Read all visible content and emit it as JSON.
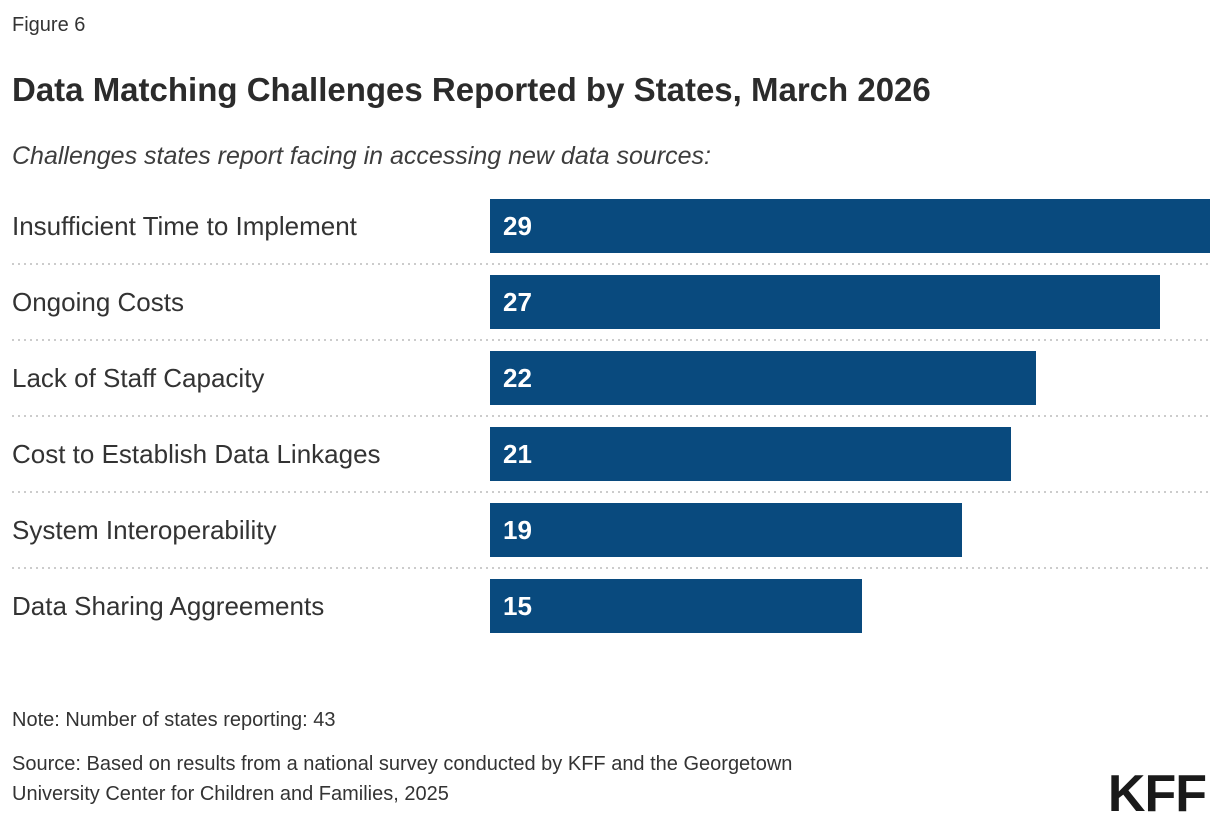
{
  "figure_label": "Figure 6",
  "title": "Data Matching Challenges Reported by States, March 2026",
  "subtitle": "Challenges states report facing in accessing new data sources:",
  "note": "Note: Number of states reporting: 43",
  "source": {
    "line1": "Source: Based on results from a national survey conducted by KFF and the Georgetown",
    "line2": "University Center for Children and Families, 2025"
  },
  "logo": "KFF",
  "colors": {
    "bar": "#094a7e",
    "separator": "#cccccc",
    "value_text": "#ffffff",
    "title_text": "#2b2b2b",
    "body_text": "#333333"
  },
  "chart_data": {
    "type": "bar",
    "orientation": "horizontal",
    "title": "Data Matching Challenges Reported by States, March 2026",
    "subtitle": "Challenges states report facing in accessing new data sources:",
    "categories": [
      "Insufficient Time to Implement",
      "Ongoing Costs",
      "Lack of Staff Capacity",
      "Cost to Establish Data Linkages",
      "System Interoperability",
      "Data Sharing Aggreements"
    ],
    "values": [
      29,
      27,
      22,
      21,
      19,
      15
    ],
    "xlim": [
      0,
      29
    ],
    "value_labels": "inside-bar-start",
    "gridlines": false,
    "row_separators": "dotted",
    "legend": "none"
  }
}
